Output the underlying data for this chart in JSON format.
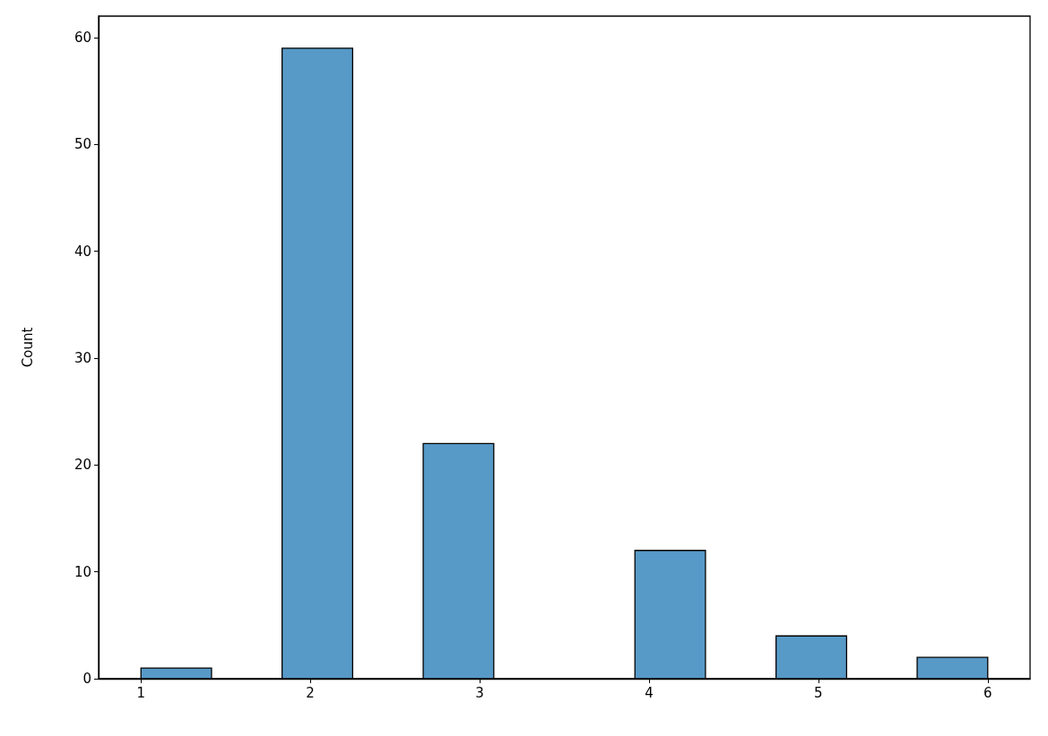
{
  "chart_data": {
    "type": "histogram",
    "ylabel": "Count",
    "bins": [
      1,
      1.4167,
      1.8333,
      2.25,
      2.6667,
      3.0833,
      3.5,
      3.9167,
      4.3333,
      4.75,
      5.1667,
      5.5833,
      6
    ],
    "values": [
      1,
      0,
      59,
      0,
      22,
      0,
      0,
      12,
      0,
      4,
      0,
      2
    ],
    "color": "#5799c7",
    "xlim": [
      0.75,
      6.25
    ],
    "xticks": [
      1,
      2,
      3,
      4,
      5,
      6
    ],
    "ylim": [
      0,
      62
    ],
    "yticks": [
      0,
      10,
      20,
      30,
      40,
      50,
      60
    ],
    "grid": false
  }
}
